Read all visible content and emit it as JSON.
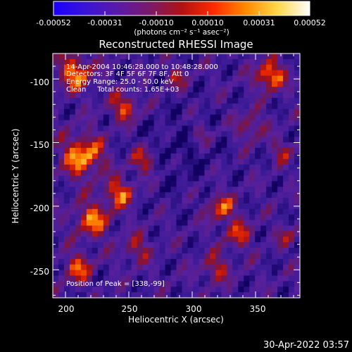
{
  "colorbar": {
    "stops": [
      "#1a00ff",
      "#3a14d6",
      "#5a1aa8",
      "#7a1a6a",
      "#b01212",
      "#ff2a00",
      "#ff8a00",
      "#ffd84a",
      "#ffffff"
    ],
    "tick_labels": [
      "-0.00052",
      "-0.00031",
      "-0.00010",
      "0.00010",
      "0.00031",
      "0.00052"
    ],
    "units_label": "(photons cm⁻² s⁻¹ asec⁻²)"
  },
  "plot": {
    "title": "Reconstructed RHESSI Image",
    "annotations": [
      "14-Apr-2004 10:46:28.000 to 10:48:28.000",
      "Detectors: 3F 4F 5F 6F 7F 8F, Att 0",
      "Energy Range: 25.0 - 50.0 keV",
      "Clean     Total counts: 1.65E+03"
    ],
    "peak_label": "Position of Peak = [338,-99]",
    "xlabel": "Heliocentric X (arcsec)",
    "ylabel": "Heliocentric Y (arcsec)",
    "x_ticks": [
      "200",
      "250",
      "300",
      "350"
    ],
    "y_ticks": [
      "-100",
      "-150",
      "-200",
      "-250"
    ]
  },
  "timestamp": "30-Apr-2022 03:57"
}
